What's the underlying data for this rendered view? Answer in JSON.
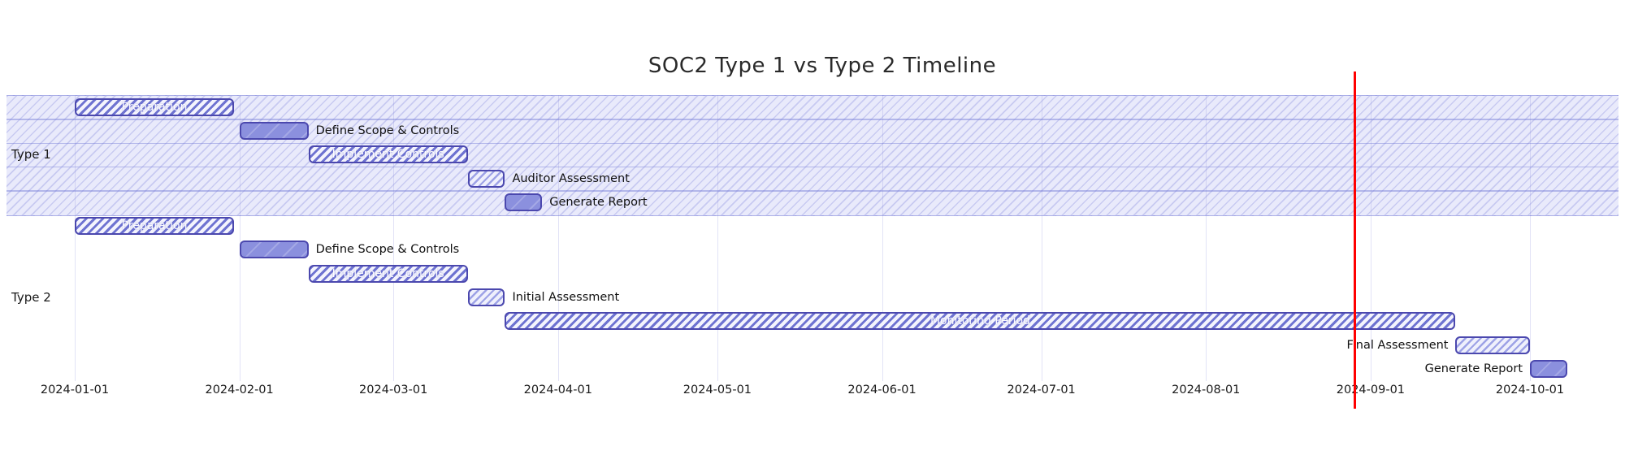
{
  "chart_data": {
    "type": "gantt",
    "title": "SOC2 Type 1 vs Type 2 Timeline",
    "axis_dates": [
      "2024-01-01",
      "2024-02-01",
      "2024-03-01",
      "2024-04-01",
      "2024-05-01",
      "2024-06-01",
      "2024-07-01",
      "2024-08-01",
      "2024-09-01",
      "2024-10-01"
    ],
    "today_marker": {
      "date": "2024-08-29",
      "color": "#ff0000"
    },
    "legend_position": "none",
    "grid": "on",
    "sections": [
      {
        "name": "Type 1",
        "tasks": [
          {
            "label": "Preparation",
            "start": "2024-01-01",
            "end": "2024-01-31",
            "style": "hatched",
            "label_pos": "inside"
          },
          {
            "label": "Define Scope & Controls",
            "start": "2024-02-01",
            "end": "2024-02-14",
            "style": "solid",
            "label_pos": "right"
          },
          {
            "label": "Implement Controls",
            "start": "2024-02-14",
            "end": "2024-03-15",
            "style": "hatched",
            "label_pos": "inside"
          },
          {
            "label": "Auditor Assessment",
            "start": "2024-03-15",
            "end": "2024-03-22",
            "style": "light",
            "label_pos": "right"
          },
          {
            "label": "Generate Report",
            "start": "2024-03-22",
            "end": "2024-03-29",
            "style": "solid",
            "label_pos": "right"
          }
        ]
      },
      {
        "name": "Type 2",
        "tasks": [
          {
            "label": "Preparation",
            "start": "2024-01-01",
            "end": "2024-01-31",
            "style": "hatched",
            "label_pos": "inside"
          },
          {
            "label": "Define Scope & Controls",
            "start": "2024-02-01",
            "end": "2024-02-14",
            "style": "solid",
            "label_pos": "right"
          },
          {
            "label": "Implement Controls",
            "start": "2024-02-14",
            "end": "2024-03-15",
            "style": "hatched",
            "label_pos": "inside"
          },
          {
            "label": "Initial Assessment",
            "start": "2024-03-15",
            "end": "2024-03-22",
            "style": "light",
            "label_pos": "right"
          },
          {
            "label": "Monitoring Period",
            "start": "2024-03-22",
            "end": "2024-09-17",
            "style": "hatched",
            "label_pos": "inside"
          },
          {
            "label": "Final Assessment",
            "start": "2024-09-17",
            "end": "2024-10-01",
            "style": "light",
            "label_pos": "left"
          },
          {
            "label": "Generate Report",
            "start": "2024-10-01",
            "end": "2024-10-08",
            "style": "solid",
            "label_pos": "left"
          }
        ]
      }
    ],
    "colors": {
      "bar_fill_solid": "#8b90de",
      "bar_hatch_stroke": "#6e73d1",
      "bar_hatch_light": "#9da2e6",
      "bar_border": "#4b48ae",
      "section_band": "#e9eafb",
      "today_line": "#ff0000",
      "text": "#1c1c1c"
    }
  }
}
